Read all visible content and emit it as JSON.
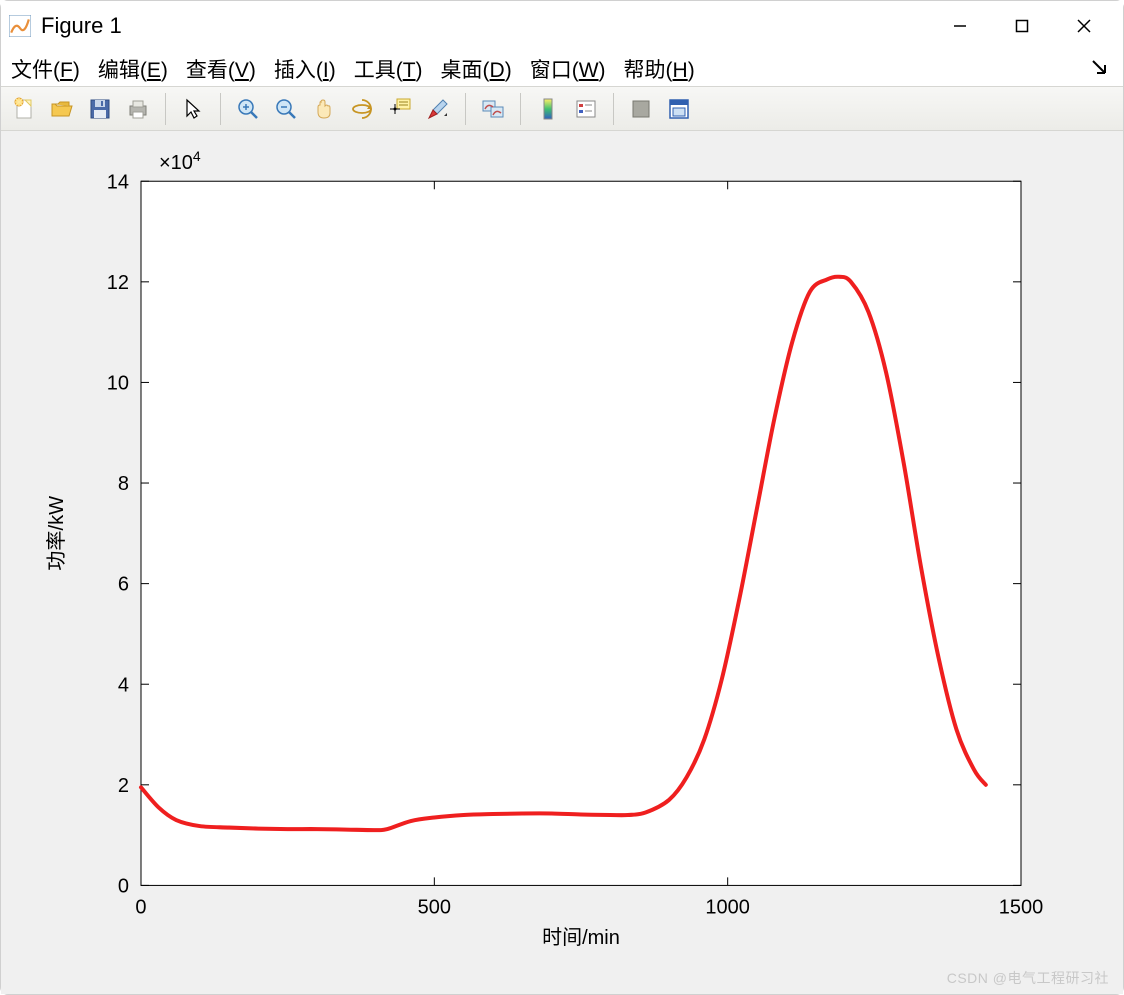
{
  "window": {
    "title": "Figure 1",
    "icon_colors": {
      "bg": "#ffffff",
      "border": "#7aa0c4",
      "accent": "#e98f3a"
    }
  },
  "menu": {
    "items": [
      {
        "label": "文件",
        "mnemonic": "F"
      },
      {
        "label": "编辑",
        "mnemonic": "E"
      },
      {
        "label": "查看",
        "mnemonic": "V"
      },
      {
        "label": "插入",
        "mnemonic": "I"
      },
      {
        "label": "工具",
        "mnemonic": "T"
      },
      {
        "label": "桌面",
        "mnemonic": "D"
      },
      {
        "label": "窗口",
        "mnemonic": "W"
      },
      {
        "label": "帮助",
        "mnemonic": "H"
      }
    ]
  },
  "toolbar": {
    "buttons": [
      "new-figure",
      "open-file",
      "save",
      "print",
      "|",
      "pointer",
      "|",
      "zoom-in",
      "zoom-out",
      "pan",
      "rotate3d",
      "data-cursor",
      "brush",
      "|",
      "link-plot",
      "|",
      "colorbar",
      "legend",
      "|",
      "hide-plot-tools",
      "dock"
    ]
  },
  "chart": {
    "type": "line",
    "xlabel": "时间/min",
    "ylabel": "功率/kW",
    "y_scale_label": "×10",
    "y_scale_exp": "4",
    "xlim": [
      0,
      1500
    ],
    "ylim": [
      0,
      14
    ],
    "xticks": [
      0,
      500,
      1000,
      1500
    ],
    "yticks": [
      0,
      2,
      4,
      6,
      8,
      10,
      12,
      14
    ],
    "label_fontsize": 20,
    "tick_fontsize": 20,
    "line_color": "#ef1f1f",
    "line_width": 4,
    "background_color": "#ffffff",
    "figure_background": "#f0f0f0",
    "axis_color": "#000000",
    "tick_length": 8,
    "data": [
      [
        0,
        1.95
      ],
      [
        30,
        1.55
      ],
      [
        60,
        1.3
      ],
      [
        100,
        1.18
      ],
      [
        150,
        1.15
      ],
      [
        200,
        1.13
      ],
      [
        250,
        1.12
      ],
      [
        300,
        1.12
      ],
      [
        350,
        1.11
      ],
      [
        400,
        1.1
      ],
      [
        420,
        1.12
      ],
      [
        460,
        1.28
      ],
      [
        500,
        1.35
      ],
      [
        550,
        1.4
      ],
      [
        600,
        1.42
      ],
      [
        650,
        1.43
      ],
      [
        700,
        1.43
      ],
      [
        750,
        1.41
      ],
      [
        800,
        1.4
      ],
      [
        830,
        1.4
      ],
      [
        860,
        1.45
      ],
      [
        900,
        1.7
      ],
      [
        930,
        2.15
      ],
      [
        960,
        2.9
      ],
      [
        990,
        4.1
      ],
      [
        1020,
        5.7
      ],
      [
        1050,
        7.5
      ],
      [
        1080,
        9.3
      ],
      [
        1110,
        10.8
      ],
      [
        1140,
        11.8
      ],
      [
        1170,
        12.05
      ],
      [
        1190,
        12.1
      ],
      [
        1210,
        12.0
      ],
      [
        1240,
        11.4
      ],
      [
        1270,
        10.2
      ],
      [
        1300,
        8.4
      ],
      [
        1330,
        6.3
      ],
      [
        1360,
        4.5
      ],
      [
        1390,
        3.1
      ],
      [
        1420,
        2.3
      ],
      [
        1440,
        2.0
      ]
    ]
  },
  "watermark": "CSDN @电气工程研习社"
}
